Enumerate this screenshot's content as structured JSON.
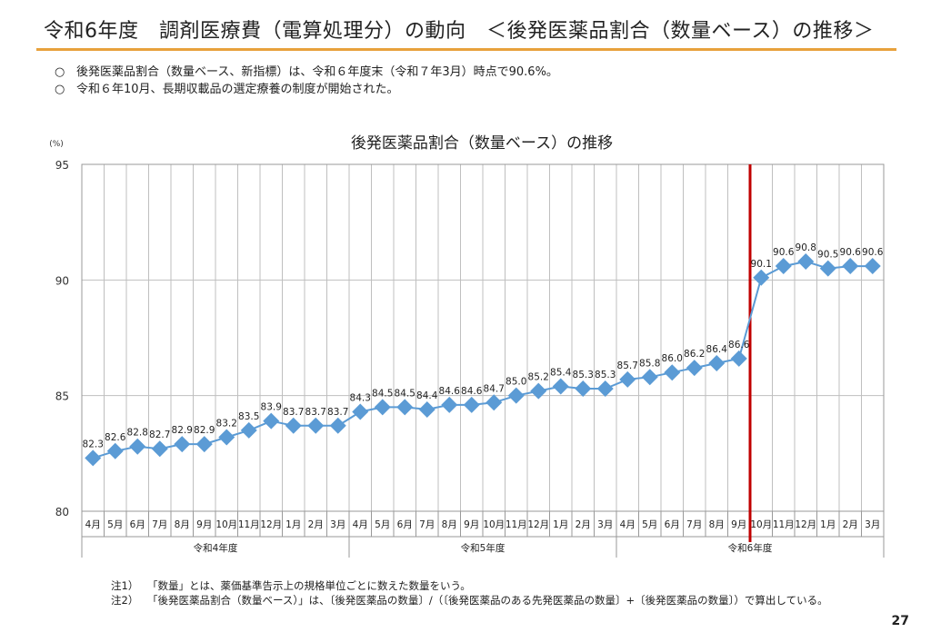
{
  "header": {
    "title": "令和6年度　調剤医療費（電算処理分）の動向　＜後発医薬品割合（数量ベース）の推移＞"
  },
  "bullets": [
    {
      "mark": "○",
      "text": "後発医薬品割合（数量ベース、新指標）は、令和６年度末（令和７年3月）時点で90.6%。"
    },
    {
      "mark": "○",
      "text": "令和６年10月、長期収載品の選定療養の制度が開始された。"
    }
  ],
  "chart_data": {
    "type": "line",
    "title": "後発医薬品割合（数量ベース）の推移",
    "ylabel": "(%)",
    "ylim": [
      80,
      95
    ],
    "yticks": [
      80,
      85,
      90,
      95
    ],
    "categories": [
      "4月",
      "5月",
      "6月",
      "7月",
      "8月",
      "9月",
      "10月",
      "11月",
      "12月",
      "1月",
      "2月",
      "3月",
      "4月",
      "5月",
      "6月",
      "7月",
      "8月",
      "9月",
      "10月",
      "11月",
      "12月",
      "1月",
      "2月",
      "3月",
      "4月",
      "5月",
      "6月",
      "7月",
      "8月",
      "9月",
      "10月",
      "11月",
      "12月",
      "1月",
      "2月",
      "3月"
    ],
    "values": [
      82.3,
      82.6,
      82.8,
      82.7,
      82.9,
      82.9,
      83.2,
      83.5,
      83.9,
      83.7,
      83.7,
      83.7,
      84.3,
      84.5,
      84.5,
      84.4,
      84.6,
      84.6,
      84.7,
      85.0,
      85.2,
      85.4,
      85.3,
      85.3,
      85.7,
      85.8,
      86.0,
      86.2,
      86.4,
      86.6,
      90.1,
      90.6,
      90.8,
      90.5,
      90.6,
      90.6
    ],
    "groups": [
      {
        "label": "令和4年度",
        "start": 0,
        "end": 11
      },
      {
        "label": "令和5年度",
        "start": 12,
        "end": 23
      },
      {
        "label": "令和6年度",
        "start": 24,
        "end": 35
      }
    ],
    "marker_line_after_index": 29,
    "grid": true,
    "colors": {
      "series": "#5b9bd5",
      "marker": "#5b9bd5",
      "vline": "#c00000",
      "grid": "#bfbfbf"
    }
  },
  "notes": [
    {
      "label": "注1）",
      "text": "「数量」とは、薬価基準告示上の規格単位ごとに数えた数量をいう。"
    },
    {
      "label": "注2）",
      "text": "「後発医薬品割合（数量ベース）」は、〔後発医薬品の数量〕/（〔後発医薬品のある先発医薬品の数量〕+〔後発医薬品の数量〕）で算出している。"
    }
  ],
  "page_number": "27"
}
